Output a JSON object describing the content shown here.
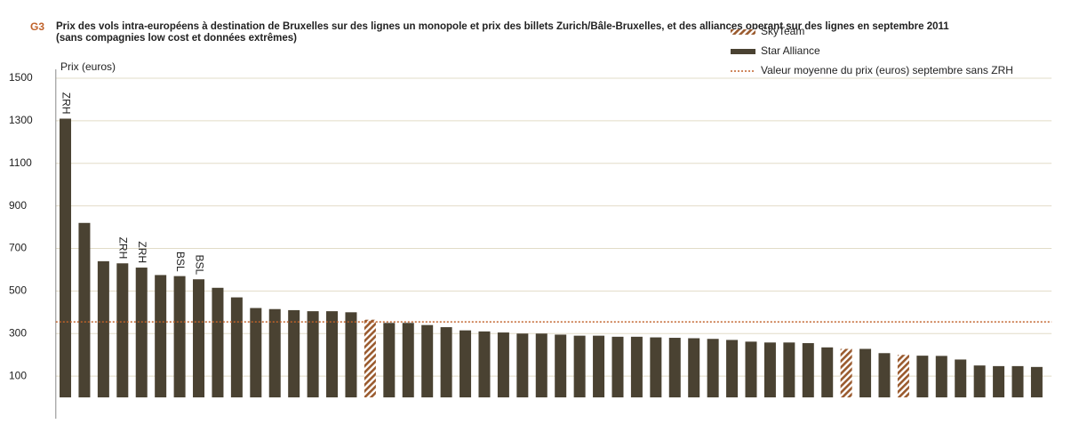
{
  "chart_data": {
    "type": "bar",
    "label": "G3",
    "title": "Prix des vols intra-européens à destination de Bruxelles sur des lignes un monopole et prix des billets Zurich/Bâle-Bruxelles, et des alliances operant sur des lignes en septembre 2011",
    "subtitle": "(sans compagnies low cost et données extrêmes)",
    "y_label": "Prix (euros)",
    "ylim": [
      -100,
      1500
    ],
    "yticks": [
      100,
      300,
      500,
      700,
      900,
      1100,
      1300,
      1500
    ],
    "grid": true,
    "legend": "top-right",
    "series": [
      {
        "name": "SkyTeam",
        "color": "#9a5a2e",
        "hatch": true,
        "values": [
          null,
          null,
          null,
          null,
          null,
          null,
          null,
          null,
          null,
          null,
          null,
          null,
          null,
          null,
          null,
          null,
          365,
          null,
          null,
          null,
          null,
          null,
          null,
          null,
          null,
          null,
          null,
          null,
          null,
          null,
          null,
          null,
          null,
          null,
          null,
          null,
          null,
          null,
          null,
          null,
          null,
          228,
          null,
          null,
          200,
          null,
          null,
          null,
          null,
          null,
          null,
          null
        ]
      },
      {
        "name": "Star Alliance",
        "color": "#4a4232",
        "hatch": false,
        "values": [
          1310,
          820,
          640,
          630,
          610,
          575,
          570,
          555,
          515,
          470,
          420,
          415,
          410,
          405,
          405,
          400,
          null,
          350,
          350,
          340,
          330,
          315,
          310,
          305,
          300,
          300,
          295,
          290,
          290,
          285,
          285,
          282,
          280,
          278,
          275,
          270,
          262,
          258,
          258,
          255,
          235,
          null,
          228,
          208,
          null,
          196,
          195,
          178,
          150,
          147,
          147,
          143
        ]
      }
    ],
    "bar_labels": [
      "ZRH",
      null,
      null,
      "ZRH",
      "ZRH",
      null,
      "BSL",
      "BSL",
      null,
      null,
      null,
      null,
      null,
      null,
      null,
      null,
      null,
      null,
      null,
      null,
      null,
      null,
      null,
      null,
      null,
      null,
      null,
      null,
      null,
      null,
      null,
      null,
      null,
      null,
      null,
      null,
      null,
      null,
      null,
      null,
      null,
      null,
      null,
      null,
      null,
      null,
      null,
      null,
      null,
      null,
      null,
      null
    ],
    "reference_line": {
      "name": "Valeur moyenne du prix (euros) septembre sans ZRH",
      "value": 355,
      "color": "#c0622a"
    }
  }
}
